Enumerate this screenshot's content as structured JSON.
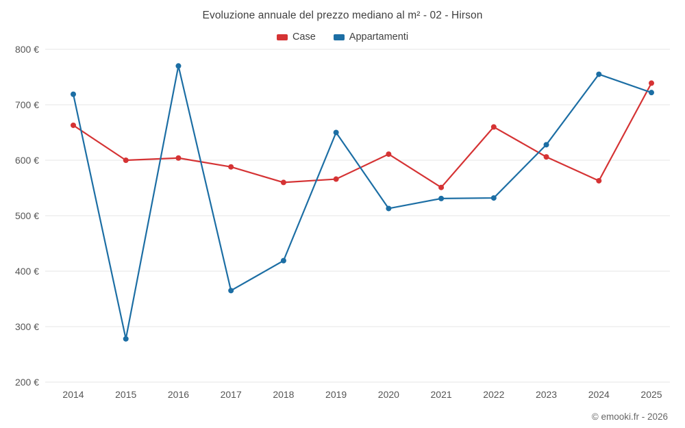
{
  "chart_data": {
    "type": "line",
    "title": "Evoluzione annuale del prezzo mediano al m² - 02 - Hirson",
    "categories": [
      "2014",
      "2015",
      "2016",
      "2017",
      "2018",
      "2019",
      "2020",
      "2021",
      "2022",
      "2023",
      "2024",
      "2025"
    ],
    "series": [
      {
        "name": "Case",
        "color": "#d53334",
        "values": [
          663,
          600,
          604,
          588,
          560,
          566,
          611,
          551,
          660,
          606,
          563,
          739
        ]
      },
      {
        "name": "Appartamenti",
        "color": "#1c6ea4",
        "values": [
          719,
          278,
          770,
          365,
          419,
          650,
          513,
          531,
          532,
          628,
          755,
          722
        ]
      }
    ],
    "ylabel": "",
    "xlabel": "",
    "ylim": [
      200,
      800
    ],
    "ytick_step": 100,
    "ytick_labels": [
      "200 €",
      "300 €",
      "400 €",
      "500 €",
      "600 €",
      "700 €",
      "800 €"
    ],
    "grid": true,
    "grid_color": "#e6e6e6",
    "legend_position": "top"
  },
  "footer": {
    "copyright": "© emooki.fr - 2026"
  }
}
